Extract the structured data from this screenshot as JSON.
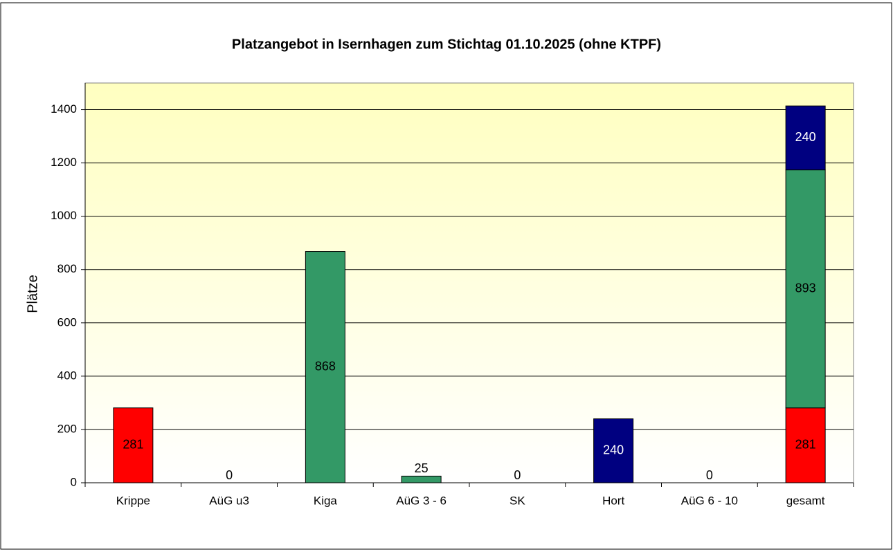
{
  "chart_data": {
    "type": "bar",
    "stacked": true,
    "title": "Platzangebot in Isernhagen zum Stichtag 01.10.2025 (ohne KTPF)",
    "y_label": "Plätze",
    "categories": [
      "Krippe",
      "AüG u3",
      "Kiga",
      "AüG 3 - 6",
      "SK",
      "Hort",
      "AüG 6 - 10",
      "gesamt"
    ],
    "series": [
      {
        "color": "#ff0000",
        "values": [
          281,
          0,
          null,
          null,
          null,
          null,
          null,
          281
        ]
      },
      {
        "color": "#339966",
        "values": [
          null,
          null,
          868,
          25,
          0,
          null,
          null,
          893
        ]
      },
      {
        "color": "#000080",
        "values": [
          null,
          null,
          null,
          null,
          null,
          240,
          0,
          240
        ]
      }
    ],
    "ylim": [
      0,
      1500
    ],
    "yticks": [
      0,
      200,
      400,
      600,
      800,
      1000,
      1200,
      1400
    ],
    "grid": true
  }
}
